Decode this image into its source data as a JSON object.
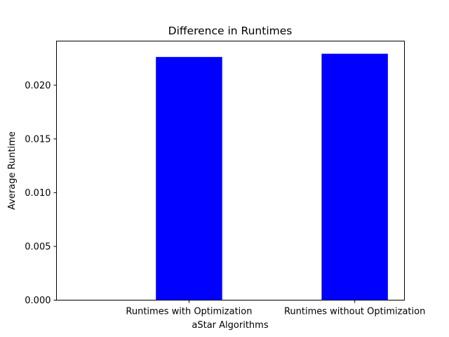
{
  "chart_data": {
    "type": "bar",
    "title": "Difference in Runtimes",
    "xlabel": "aStar Algorithms",
    "ylabel": "Average Runtime",
    "categories": [
      "Runtimes with Optimization",
      "Runtimes without Optimization"
    ],
    "values": [
      0.02262,
      0.02292
    ],
    "ylim": [
      0,
      0.0241
    ],
    "yticks": [
      0.0,
      0.005,
      0.01,
      0.015,
      0.02
    ],
    "ytick_labels": [
      "0.000",
      "0.005",
      "0.010",
      "0.015",
      "0.020"
    ],
    "bar_color": "#0000ff",
    "grid": false,
    "legend": "none"
  }
}
